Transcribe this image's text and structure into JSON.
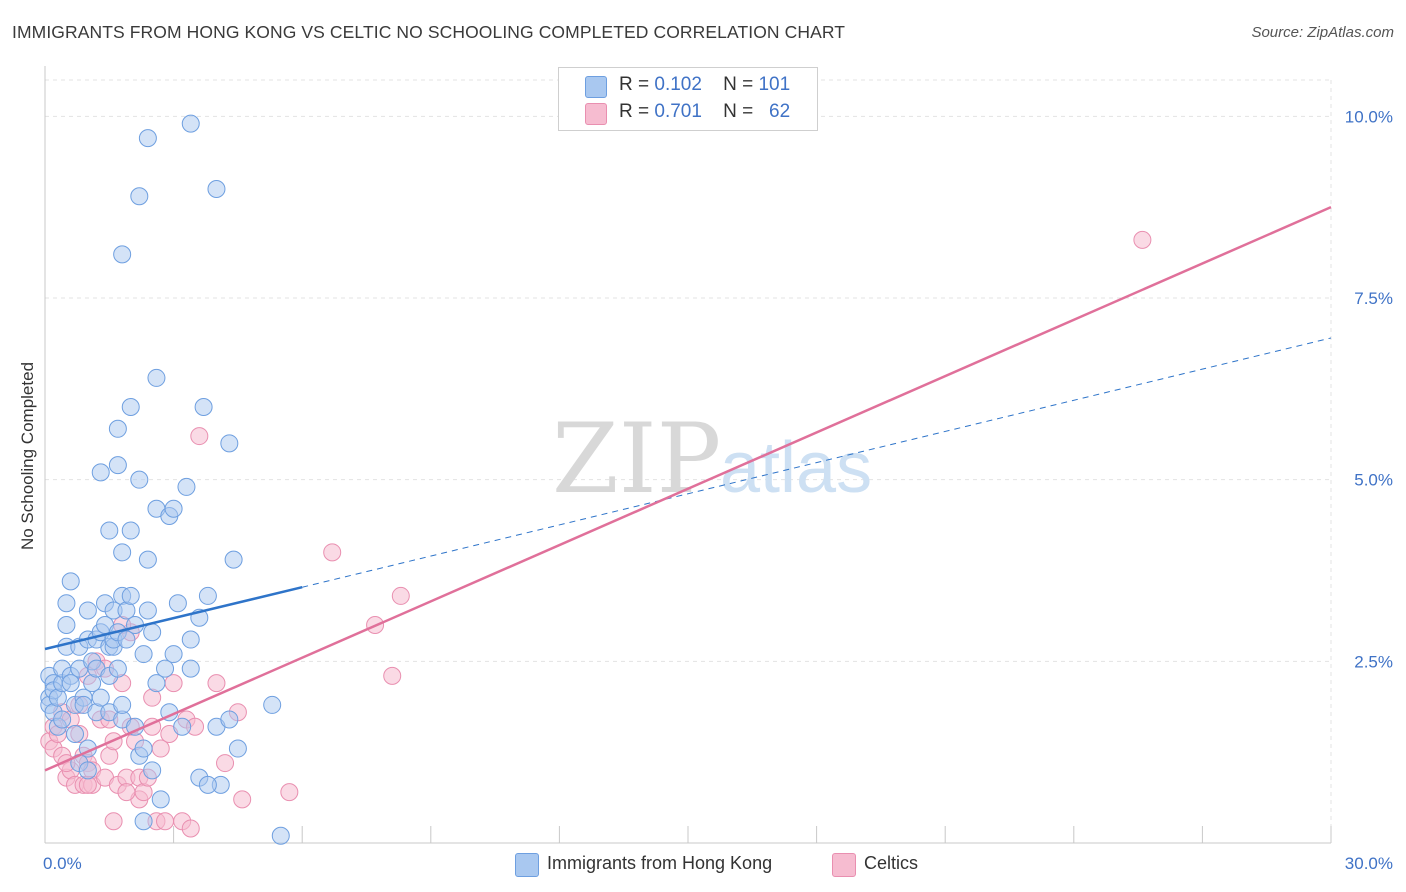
{
  "title": "IMMIGRANTS FROM HONG KONG VS CELTIC NO SCHOOLING COMPLETED CORRELATION CHART",
  "source": "Source: ZipAtlas.com",
  "watermark": {
    "zip": "ZIP",
    "atlas": "atlas"
  },
  "legend": {
    "rows": [
      {
        "r_label": "R =",
        "r_value": "0.102",
        "n_label": "N =",
        "n_value": "101"
      },
      {
        "r_label": "R =",
        "r_value": "0.701",
        "n_label": "N =",
        "n_value": "62"
      }
    ]
  },
  "colors": {
    "blue_fill": "#a9c8f0",
    "blue_stroke": "#6e9fe0",
    "blue_line": "#2e74c9",
    "pink_fill": "#f6bcd0",
    "pink_stroke": "#e98fb0",
    "pink_line": "#e0709a",
    "tick_label": "#3f72c6",
    "grid": "#e3e3e3"
  },
  "chart_data": {
    "type": "scatter",
    "title": "IMMIGRANTS FROM HONG KONG VS CELTIC NO SCHOOLING COMPLETED CORRELATION CHART",
    "xlabel": "",
    "ylabel": "No Schooling Completed",
    "xlim": [
      0,
      30
    ],
    "ylim": [
      0,
      10.5
    ],
    "x_tick_labels": [
      {
        "value": 0,
        "label": "0.0%"
      },
      {
        "value": 30,
        "label": "30.0%"
      }
    ],
    "y_tick_labels": [
      {
        "value": 2.5,
        "label": "2.5%"
      },
      {
        "value": 5.0,
        "label": "5.0%"
      },
      {
        "value": 7.5,
        "label": "7.5%"
      },
      {
        "value": 10.0,
        "label": "10.0%"
      }
    ],
    "grid": true,
    "legend_position": "top-center",
    "series": [
      {
        "name": "Immigrants from Hong Kong",
        "color": "#a9c8f0",
        "trend": {
          "x0": 0,
          "y0": 2.67,
          "x1": 6,
          "y1": 3.52,
          "dashed_to_x": 30,
          "dashed_to_y": 6.95
        },
        "points": [
          [
            0.1,
            2.3
          ],
          [
            0.1,
            2.0
          ],
          [
            0.1,
            1.9
          ],
          [
            0.2,
            2.2
          ],
          [
            0.2,
            1.8
          ],
          [
            0.2,
            2.1
          ],
          [
            0.3,
            2.0
          ],
          [
            0.3,
            1.6
          ],
          [
            0.4,
            2.2
          ],
          [
            0.4,
            1.7
          ],
          [
            0.4,
            2.4
          ],
          [
            0.5,
            3.3
          ],
          [
            0.5,
            3.0
          ],
          [
            0.5,
            2.7
          ],
          [
            0.6,
            3.6
          ],
          [
            0.6,
            2.3
          ],
          [
            0.6,
            2.2
          ],
          [
            0.7,
            1.9
          ],
          [
            0.7,
            1.5
          ],
          [
            0.8,
            2.7
          ],
          [
            0.8,
            2.4
          ],
          [
            0.8,
            1.1
          ],
          [
            0.9,
            2.0
          ],
          [
            0.9,
            1.9
          ],
          [
            1.0,
            3.2
          ],
          [
            1.0,
            2.8
          ],
          [
            1.0,
            1.3
          ],
          [
            1.1,
            2.5
          ],
          [
            1.1,
            2.2
          ],
          [
            1.2,
            2.4
          ],
          [
            1.2,
            1.8
          ],
          [
            1.2,
            2.8
          ],
          [
            1.3,
            2.0
          ],
          [
            1.3,
            2.9
          ],
          [
            1.4,
            3.3
          ],
          [
            1.4,
            3.0
          ],
          [
            1.5,
            2.7
          ],
          [
            1.5,
            2.3
          ],
          [
            1.5,
            1.8
          ],
          [
            1.6,
            2.7
          ],
          [
            1.6,
            3.2
          ],
          [
            1.6,
            2.8
          ],
          [
            1.7,
            2.9
          ],
          [
            1.7,
            2.4
          ],
          [
            1.8,
            3.4
          ],
          [
            1.8,
            1.7
          ],
          [
            1.8,
            1.9
          ],
          [
            1.9,
            3.2
          ],
          [
            1.9,
            2.8
          ],
          [
            2.0,
            3.4
          ],
          [
            2.1,
            3.0
          ],
          [
            2.1,
            1.6
          ],
          [
            2.2,
            1.2
          ],
          [
            2.3,
            2.6
          ],
          [
            2.3,
            1.3
          ],
          [
            2.4,
            3.2
          ],
          [
            2.5,
            2.9
          ],
          [
            2.5,
            1.0
          ],
          [
            2.6,
            2.2
          ],
          [
            2.7,
            0.6
          ],
          [
            2.8,
            2.4
          ],
          [
            2.9,
            1.8
          ],
          [
            3.0,
            2.6
          ],
          [
            3.1,
            3.3
          ],
          [
            3.2,
            1.6
          ],
          [
            3.4,
            2.4
          ],
          [
            3.4,
            2.8
          ],
          [
            3.6,
            0.9
          ],
          [
            3.6,
            3.1
          ],
          [
            3.8,
            3.4
          ],
          [
            4.0,
            1.6
          ],
          [
            4.1,
            0.8
          ],
          [
            4.3,
            1.7
          ],
          [
            4.5,
            1.3
          ],
          [
            5.3,
            1.9
          ],
          [
            5.5,
            0.1
          ],
          [
            1.0,
            1.0
          ],
          [
            1.3,
            5.1
          ],
          [
            1.5,
            4.3
          ],
          [
            1.7,
            5.7
          ],
          [
            1.7,
            5.2
          ],
          [
            1.8,
            4.0
          ],
          [
            2.0,
            4.3
          ],
          [
            2.2,
            5.0
          ],
          [
            2.4,
            3.9
          ],
          [
            2.6,
            4.6
          ],
          [
            2.9,
            4.5
          ],
          [
            3.0,
            4.6
          ],
          [
            3.3,
            4.9
          ],
          [
            3.7,
            6.0
          ],
          [
            4.4,
            3.9
          ],
          [
            4.3,
            5.5
          ],
          [
            2.0,
            6.0
          ],
          [
            2.6,
            6.4
          ],
          [
            2.4,
            9.7
          ],
          [
            2.2,
            8.9
          ],
          [
            1.8,
            8.1
          ],
          [
            3.4,
            9.9
          ],
          [
            4.0,
            9.0
          ],
          [
            2.3,
            0.3
          ],
          [
            3.8,
            0.8
          ]
        ]
      },
      {
        "name": "Celtics",
        "color": "#f6bcd0",
        "trend": {
          "x0": 0,
          "y0": 1.0,
          "x1": 30,
          "y1": 8.75
        },
        "points": [
          [
            0.1,
            1.4
          ],
          [
            0.2,
            1.3
          ],
          [
            0.2,
            1.6
          ],
          [
            0.3,
            1.5
          ],
          [
            0.4,
            1.8
          ],
          [
            0.4,
            1.2
          ],
          [
            0.5,
            0.9
          ],
          [
            0.6,
            1.7
          ],
          [
            0.6,
            1.0
          ],
          [
            0.7,
            0.8
          ],
          [
            0.8,
            1.5
          ],
          [
            0.8,
            1.9
          ],
          [
            0.9,
            0.8
          ],
          [
            0.9,
            1.2
          ],
          [
            1.0,
            1.1
          ],
          [
            1.0,
            2.3
          ],
          [
            1.1,
            1.0
          ],
          [
            1.1,
            0.8
          ],
          [
            1.2,
            2.5
          ],
          [
            1.3,
            1.7
          ],
          [
            1.4,
            0.9
          ],
          [
            1.4,
            2.4
          ],
          [
            1.5,
            1.2
          ],
          [
            1.5,
            1.7
          ],
          [
            1.6,
            0.3
          ],
          [
            1.6,
            1.4
          ],
          [
            1.7,
            0.8
          ],
          [
            1.8,
            2.2
          ],
          [
            1.9,
            0.9
          ],
          [
            2.0,
            1.6
          ],
          [
            2.0,
            2.9
          ],
          [
            2.1,
            1.4
          ],
          [
            2.2,
            0.6
          ],
          [
            2.2,
            0.9
          ],
          [
            2.3,
            0.7
          ],
          [
            2.4,
            0.9
          ],
          [
            2.5,
            1.6
          ],
          [
            2.5,
            2.0
          ],
          [
            2.6,
            0.3
          ],
          [
            2.7,
            1.3
          ],
          [
            2.8,
            0.3
          ],
          [
            2.9,
            1.5
          ],
          [
            3.0,
            2.2
          ],
          [
            3.2,
            0.3
          ],
          [
            3.3,
            1.7
          ],
          [
            3.4,
            0.2
          ],
          [
            3.5,
            1.6
          ],
          [
            3.6,
            5.6
          ],
          [
            4.0,
            2.2
          ],
          [
            4.2,
            1.1
          ],
          [
            4.5,
            1.8
          ],
          [
            4.6,
            0.6
          ],
          [
            5.7,
            0.7
          ],
          [
            6.7,
            4.0
          ],
          [
            7.7,
            3.0
          ],
          [
            8.1,
            2.3
          ],
          [
            8.3,
            3.4
          ],
          [
            1.0,
            0.8
          ],
          [
            0.5,
            1.1
          ],
          [
            1.8,
            3.0
          ],
          [
            25.6,
            8.3
          ],
          [
            1.9,
            0.7
          ]
        ]
      }
    ]
  },
  "bottom_legend": [
    {
      "label": "Immigrants from Hong Kong"
    },
    {
      "label": "Celtics"
    }
  ]
}
